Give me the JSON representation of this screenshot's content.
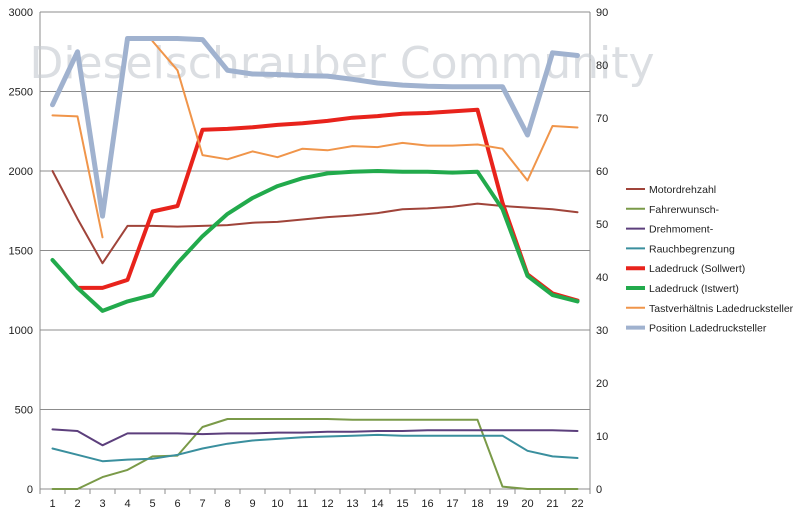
{
  "chart_data": {
    "type": "line",
    "watermark": "Dieselschrauber Community",
    "categories": [
      "1",
      "2",
      "3",
      "4",
      "5",
      "6",
      "7",
      "8",
      "9",
      "10",
      "11",
      "12",
      "13",
      "14",
      "15",
      "16",
      "17",
      "18",
      "19",
      "20",
      "21",
      "22"
    ],
    "y_left_ticks": [
      "0",
      "500",
      "1000",
      "1500",
      "2000",
      "2500",
      "3000"
    ],
    "y_right_ticks": [
      "0",
      "10",
      "20",
      "30",
      "40",
      "50",
      "60",
      "70",
      "80",
      "90"
    ],
    "ylim_left": [
      0,
      3000
    ],
    "ylim_right": [
      0,
      90
    ],
    "grid": true,
    "legend_position": "right",
    "series": [
      {
        "name": "Motordrehzahl",
        "axis": "left",
        "color": "#a0443a",
        "width": 2,
        "values": [
          2000,
          1700,
          1420,
          1655,
          1655,
          1650,
          1655,
          1660,
          1675,
          1680,
          1695,
          1710,
          1720,
          1735,
          1760,
          1765,
          1775,
          1795,
          1780,
          1770,
          1760,
          1740
        ]
      },
      {
        "name": "Fahrerwunsch-",
        "axis": "left",
        "color": "#7a9a48",
        "width": 2,
        "values": [
          0,
          0,
          75,
          120,
          205,
          210,
          390,
          440,
          440,
          440,
          440,
          440,
          435,
          435,
          435,
          435,
          435,
          435,
          15,
          0,
          0,
          0
        ]
      },
      {
        "name": "Drehmoment-",
        "axis": "left",
        "color": "#5c3f7c",
        "width": 2,
        "values": [
          375,
          365,
          275,
          350,
          350,
          350,
          345,
          350,
          350,
          355,
          355,
          360,
          360,
          365,
          365,
          370,
          370,
          370,
          370,
          370,
          370,
          365
        ]
      },
      {
        "name": "Rauchbegrenzung",
        "axis": "left",
        "color": "#3a8f9e",
        "width": 2,
        "values": [
          255,
          215,
          175,
          185,
          190,
          215,
          255,
          285,
          305,
          315,
          325,
          330,
          335,
          340,
          335,
          335,
          335,
          335,
          335,
          240,
          205,
          195
        ]
      },
      {
        "name": "Ladedruck (Sollwert)",
        "axis": "left",
        "color": "#e8231c",
        "width": 4,
        "values": [
          null,
          1265,
          1265,
          1315,
          1745,
          1780,
          2260,
          2265,
          2275,
          2290,
          2300,
          2315,
          2335,
          2345,
          2360,
          2365,
          2375,
          2385,
          1800,
          1350,
          1230,
          1185
        ]
      },
      {
        "name": "Ladedruck (Istwert)",
        "axis": "left",
        "color": "#22aa4c",
        "width": 4,
        "values": [
          1440,
          1265,
          1120,
          1180,
          1220,
          1420,
          1590,
          1730,
          1830,
          1905,
          1955,
          1985,
          1995,
          2000,
          1995,
          1995,
          1990,
          1995,
          1760,
          1340,
          1220,
          1180
        ]
      },
      {
        "name": "Tastverhältnis Ladedrucksteller",
        "axis": "right",
        "color": "#f0954a",
        "width": 2,
        "values": [
          70.5,
          70.3,
          47.5,
          null,
          84.5,
          79,
          63,
          62.2,
          63.7,
          62.6,
          64.2,
          63.9,
          64.7,
          64.5,
          65.3,
          64.8,
          64.8,
          65,
          64.2,
          58.2,
          68.5,
          68.2
        ]
      },
      {
        "name": "Position Ladedrucksteller",
        "axis": "right",
        "color": "#a0b2cf",
        "width": 5,
        "values": [
          72.5,
          82.5,
          51.5,
          85,
          85,
          85,
          84.8,
          79,
          78.3,
          78.2,
          78,
          77.9,
          77.3,
          76.6,
          76.2,
          76,
          75.9,
          75.9,
          75.9,
          66.8,
          82.3,
          81.8
        ]
      }
    ]
  }
}
